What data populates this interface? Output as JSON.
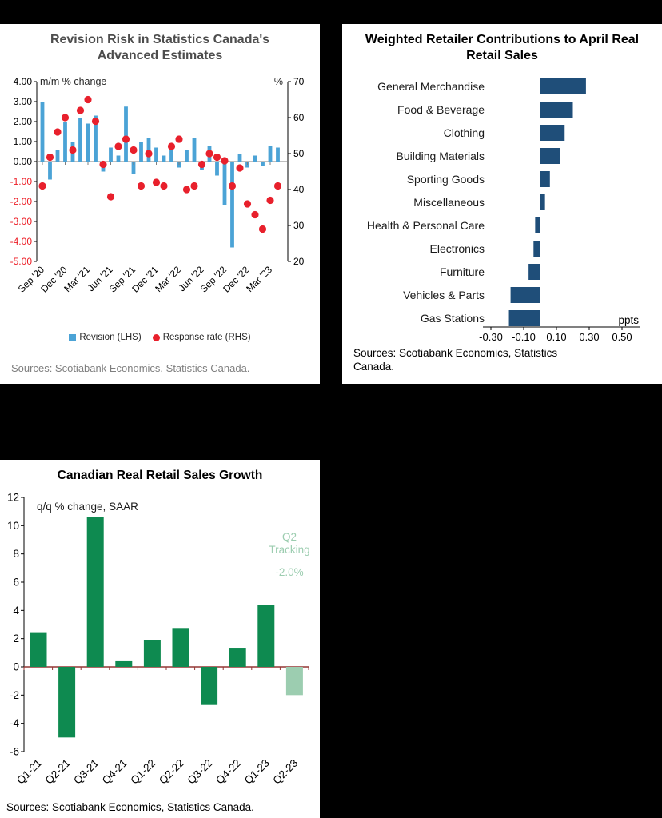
{
  "colors": {
    "revision_bar_blue": "#4BA3D6",
    "response_dot_red": "#E8202C",
    "contribution_navy": "#1F4E79",
    "growth_green": "#0E8A50",
    "tracking_light_green": "#9CCDB0",
    "negative_tick_red": "#ED1C24",
    "zero_axis_maroon": "#943634"
  },
  "chart_data": [
    {
      "id": "revision_risk",
      "type": "combo-bar-scatter",
      "title": "Revision Risk in Statistics Canada's Advanced Estimates",
      "inner_labels": {
        "left": "m/m % change",
        "right": "%"
      },
      "left_axis": {
        "max": 4,
        "min": -5,
        "step": 1,
        "tick_labels": [
          "4.00",
          "3.00",
          "2.00",
          "1.00",
          "0.00",
          "-1.00",
          "-2.00",
          "-3.00",
          "-4.00",
          "-5.00"
        ],
        "negative_color": "#ED1C24"
      },
      "right_axis": {
        "max": 70,
        "min": 20,
        "step": 10,
        "tick_labels": [
          "70",
          "60",
          "50",
          "40",
          "30",
          "20"
        ]
      },
      "x_tick_labels": [
        "Sep '20",
        "Dec '20",
        "Mar '21",
        "Jun '21",
        "Sep '21",
        "Dec '21",
        "Mar '22",
        "Jun '22",
        "Sep '22",
        "Dec '22",
        "Mar '23"
      ],
      "series": [
        {
          "name": "Revision (LHS)",
          "type": "bar",
          "axis": "left",
          "color": "#4BA3D6",
          "values": [
            3.0,
            -0.9,
            0.6,
            2.0,
            1.0,
            2.2,
            1.9,
            2.3,
            -0.5,
            0.7,
            0.3,
            2.75,
            -0.6,
            1.0,
            1.2,
            0.7,
            0.3,
            0.7,
            -0.3,
            0.6,
            1.2,
            -0.4,
            0.8,
            -0.7,
            -2.2,
            -4.3,
            0.4,
            -0.3,
            0.3,
            -0.2,
            0.8,
            0.7
          ]
        },
        {
          "name": "Response rate (RHS)",
          "type": "scatter",
          "axis": "right",
          "color": "#E8202C",
          "values": [
            41,
            49,
            56,
            60,
            51,
            62,
            65,
            59,
            47,
            38,
            52,
            54,
            51,
            41,
            50,
            42,
            41,
            52,
            54,
            40,
            41,
            47,
            50,
            49,
            48,
            41,
            46,
            36,
            33,
            29,
            37,
            41
          ]
        }
      ],
      "grid": false,
      "legend_position": "bottom",
      "source": "Sources: Scotiabank Economics, Statistics Canada."
    },
    {
      "id": "retail_contributions",
      "type": "bar",
      "orientation": "horizontal",
      "title": "Weighted Retailer Contributions to April Real Retail Sales",
      "categories": [
        "General Merchandise",
        "Food & Beverage",
        "Clothing",
        "Building Materials",
        "Sporting Goods",
        "Miscellaneous",
        "Health & Personal Care",
        "Electronics",
        "Furniture",
        "Vehicles & Parts",
        "Gas Stations"
      ],
      "values": [
        0.28,
        0.2,
        0.15,
        0.12,
        0.06,
        0.03,
        -0.03,
        -0.04,
        -0.07,
        -0.18,
        -0.19
      ],
      "xlim": [
        -0.3,
        0.5
      ],
      "x_tick_labels": [
        "-0.30",
        "-0.10",
        "0.10",
        "0.30",
        "0.50"
      ],
      "axis_unit": "ppts",
      "bar_color": "#1F4E79",
      "grid": false,
      "source": "Sources: Scotiabank Economics, Statistics Canada."
    },
    {
      "id": "retail_growth",
      "type": "bar",
      "title": "Canadian Real Retail Sales Growth",
      "subtitle": "q/q % change, SAAR",
      "categories": [
        "Q1-21",
        "Q2-21",
        "Q3-21",
        "Q4-21",
        "Q1-22",
        "Q2-22",
        "Q3-22",
        "Q4-22",
        "Q1-23",
        "Q2-23"
      ],
      "values": [
        2.4,
        -5.0,
        10.6,
        0.4,
        1.9,
        2.7,
        -2.7,
        1.3,
        4.4,
        -2.0
      ],
      "ylim": [
        -6,
        12
      ],
      "ytick_step": 2,
      "y_tick_labels": [
        "12",
        "10",
        "8",
        "6",
        "4",
        "2",
        "0",
        "-2",
        "-4",
        "-6"
      ],
      "bar_color": "#0E8A50",
      "last_bar_tracking": true,
      "tracking_color": "#9CCDB0",
      "zero_line_color": "#943634",
      "annotation": {
        "label_lines": [
          "Q2",
          "Tracking"
        ],
        "value": "-2.0%"
      },
      "grid": false,
      "source": "Sources: Scotiabank Economics, Statistics Canada."
    }
  ]
}
